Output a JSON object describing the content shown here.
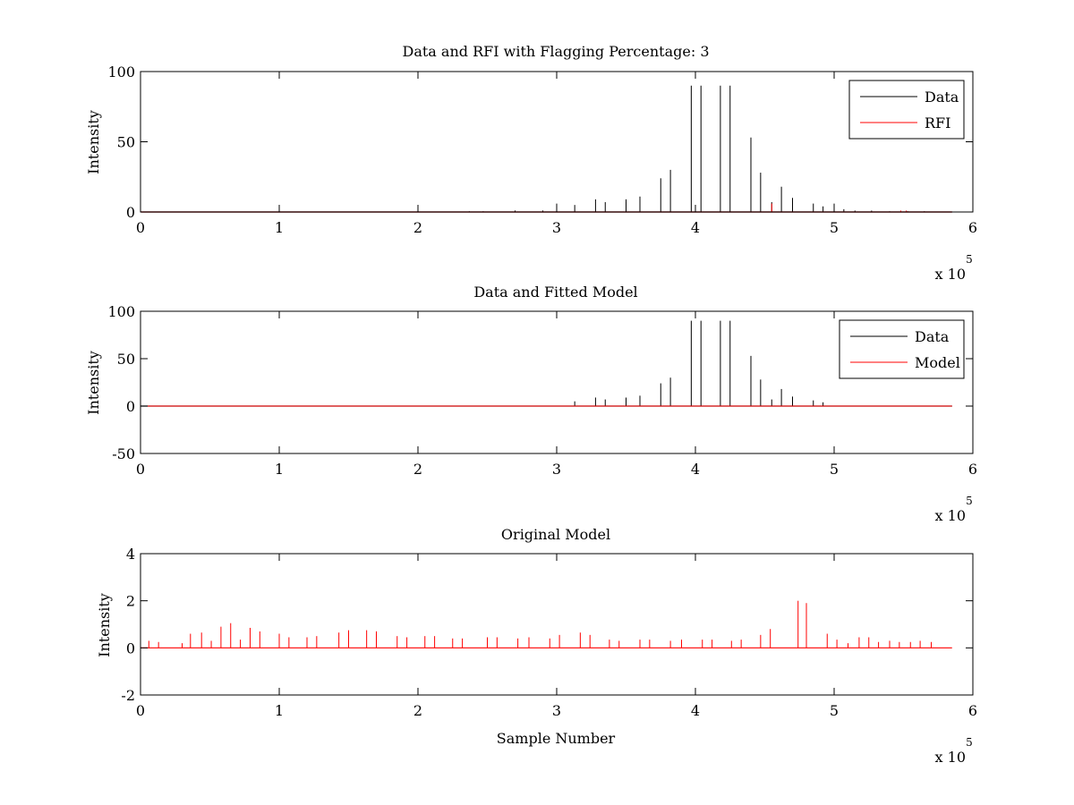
{
  "chart_data": [
    {
      "type": "line",
      "title": "Data and RFI with Flagging Percentage: 3",
      "xlabel": "",
      "ylabel": "Intensity",
      "xlim": [
        0,
        600000
      ],
      "ylim": [
        0,
        100
      ],
      "xticks": [
        "0",
        "1",
        "2",
        "3",
        "4",
        "5",
        "6"
      ],
      "yticks": [
        "0",
        "50",
        "100"
      ],
      "exponent_label": "x 10",
      "exponent_power": "5",
      "grid": false,
      "legend_position": "top-right",
      "legend": [
        "Data",
        "RFI"
      ],
      "series": [
        {
          "name": "Data",
          "color": "#000000",
          "style": "spikes",
          "x": [
            237000,
            247000,
            270000,
            290000,
            300000,
            313000,
            328000,
            335000,
            350000,
            360000,
            375000,
            382000,
            397000,
            404000,
            418000,
            425000,
            440000,
            447000,
            455000,
            462000,
            470000,
            485000,
            492000,
            500000,
            507000,
            515000,
            527000,
            540000,
            553000,
            565000
          ],
          "y": [
            0.5,
            0.5,
            1,
            1,
            6,
            5,
            9,
            7,
            9,
            11,
            24,
            30,
            90,
            90,
            90,
            90,
            53,
            28,
            7,
            18,
            10,
            6,
            4,
            6,
            2,
            1,
            1,
            0.5,
            0.5,
            0.5
          ]
        },
        {
          "name": "RFI",
          "color": "#ff0000",
          "style": "spikes",
          "x": [
            455000,
            548000,
            552000
          ],
          "y": [
            6,
            1,
            1
          ]
        }
      ]
    },
    {
      "type": "line",
      "title": "Data and Fitted Model",
      "xlabel": "",
      "ylabel": "Intensity",
      "xlim": [
        0,
        600000
      ],
      "ylim": [
        -50,
        100
      ],
      "xticks": [
        "0",
        "1",
        "2",
        "3",
        "4",
        "5",
        "6"
      ],
      "yticks": [
        "-50",
        "0",
        "50",
        "100"
      ],
      "exponent_label": "x 10",
      "exponent_power": "5",
      "grid": false,
      "legend_position": "top-right",
      "legend": [
        "Data",
        "Model"
      ],
      "series": [
        {
          "name": "Data",
          "color": "#000000",
          "style": "spikes",
          "x": [
            313000,
            328000,
            335000,
            350000,
            360000,
            375000,
            382000,
            397000,
            404000,
            418000,
            425000,
            440000,
            447000,
            455000,
            462000,
            470000,
            485000,
            492000
          ],
          "y": [
            5,
            9,
            7,
            9,
            11,
            24,
            30,
            90,
            90,
            90,
            90,
            53,
            28,
            7,
            18,
            10,
            6,
            4
          ]
        },
        {
          "name": "Model",
          "color": "#ff0000",
          "style": "flat",
          "x": [
            0,
            585000
          ],
          "y": [
            0,
            0
          ]
        }
      ]
    },
    {
      "type": "line",
      "title": "Original Model",
      "xlabel": "Sample Number",
      "ylabel": "Intensity",
      "xlim": [
        0,
        600000
      ],
      "ylim": [
        -2,
        4
      ],
      "xticks": [
        "0",
        "1",
        "2",
        "3",
        "4",
        "5",
        "6"
      ],
      "yticks": [
        "-2",
        "0",
        "2",
        "4"
      ],
      "exponent_label": "x 10",
      "exponent_power": "5",
      "grid": false,
      "legend": [],
      "series": [
        {
          "name": "",
          "color": "#ff0000",
          "style": "spikes",
          "x": [
            6000,
            13000,
            30000,
            36000,
            44000,
            51000,
            58000,
            65000,
            72000,
            79000,
            86000,
            100000,
            107000,
            120000,
            127000,
            143000,
            150000,
            163000,
            170000,
            185000,
            192000,
            205000,
            212000,
            225000,
            232000,
            250000,
            257000,
            272000,
            280000,
            295000,
            302000,
            317000,
            324000,
            338000,
            345000,
            360000,
            367000,
            382000,
            390000,
            405000,
            412000,
            426000,
            433000,
            447000,
            454000,
            474000,
            480000,
            495000,
            502000,
            510000,
            518000,
            525000,
            532000,
            540000,
            547000,
            555000,
            562000,
            570000
          ],
          "y": [
            0.3,
            0.25,
            0.2,
            0.6,
            0.65,
            0.3,
            0.9,
            1.05,
            0.35,
            0.85,
            0.7,
            0.6,
            0.45,
            0.45,
            0.5,
            0.65,
            0.75,
            0.75,
            0.7,
            0.5,
            0.45,
            0.5,
            0.5,
            0.4,
            0.4,
            0.45,
            0.45,
            0.4,
            0.45,
            0.4,
            0.55,
            0.65,
            0.55,
            0.35,
            0.3,
            0.35,
            0.35,
            0.3,
            0.35,
            0.35,
            0.35,
            0.3,
            0.35,
            0.55,
            0.8,
            2.0,
            1.9,
            0.6,
            0.35,
            0.2,
            0.45,
            0.45,
            0.25,
            0.3,
            0.25,
            0.25,
            0.3,
            0.25
          ]
        }
      ]
    }
  ]
}
